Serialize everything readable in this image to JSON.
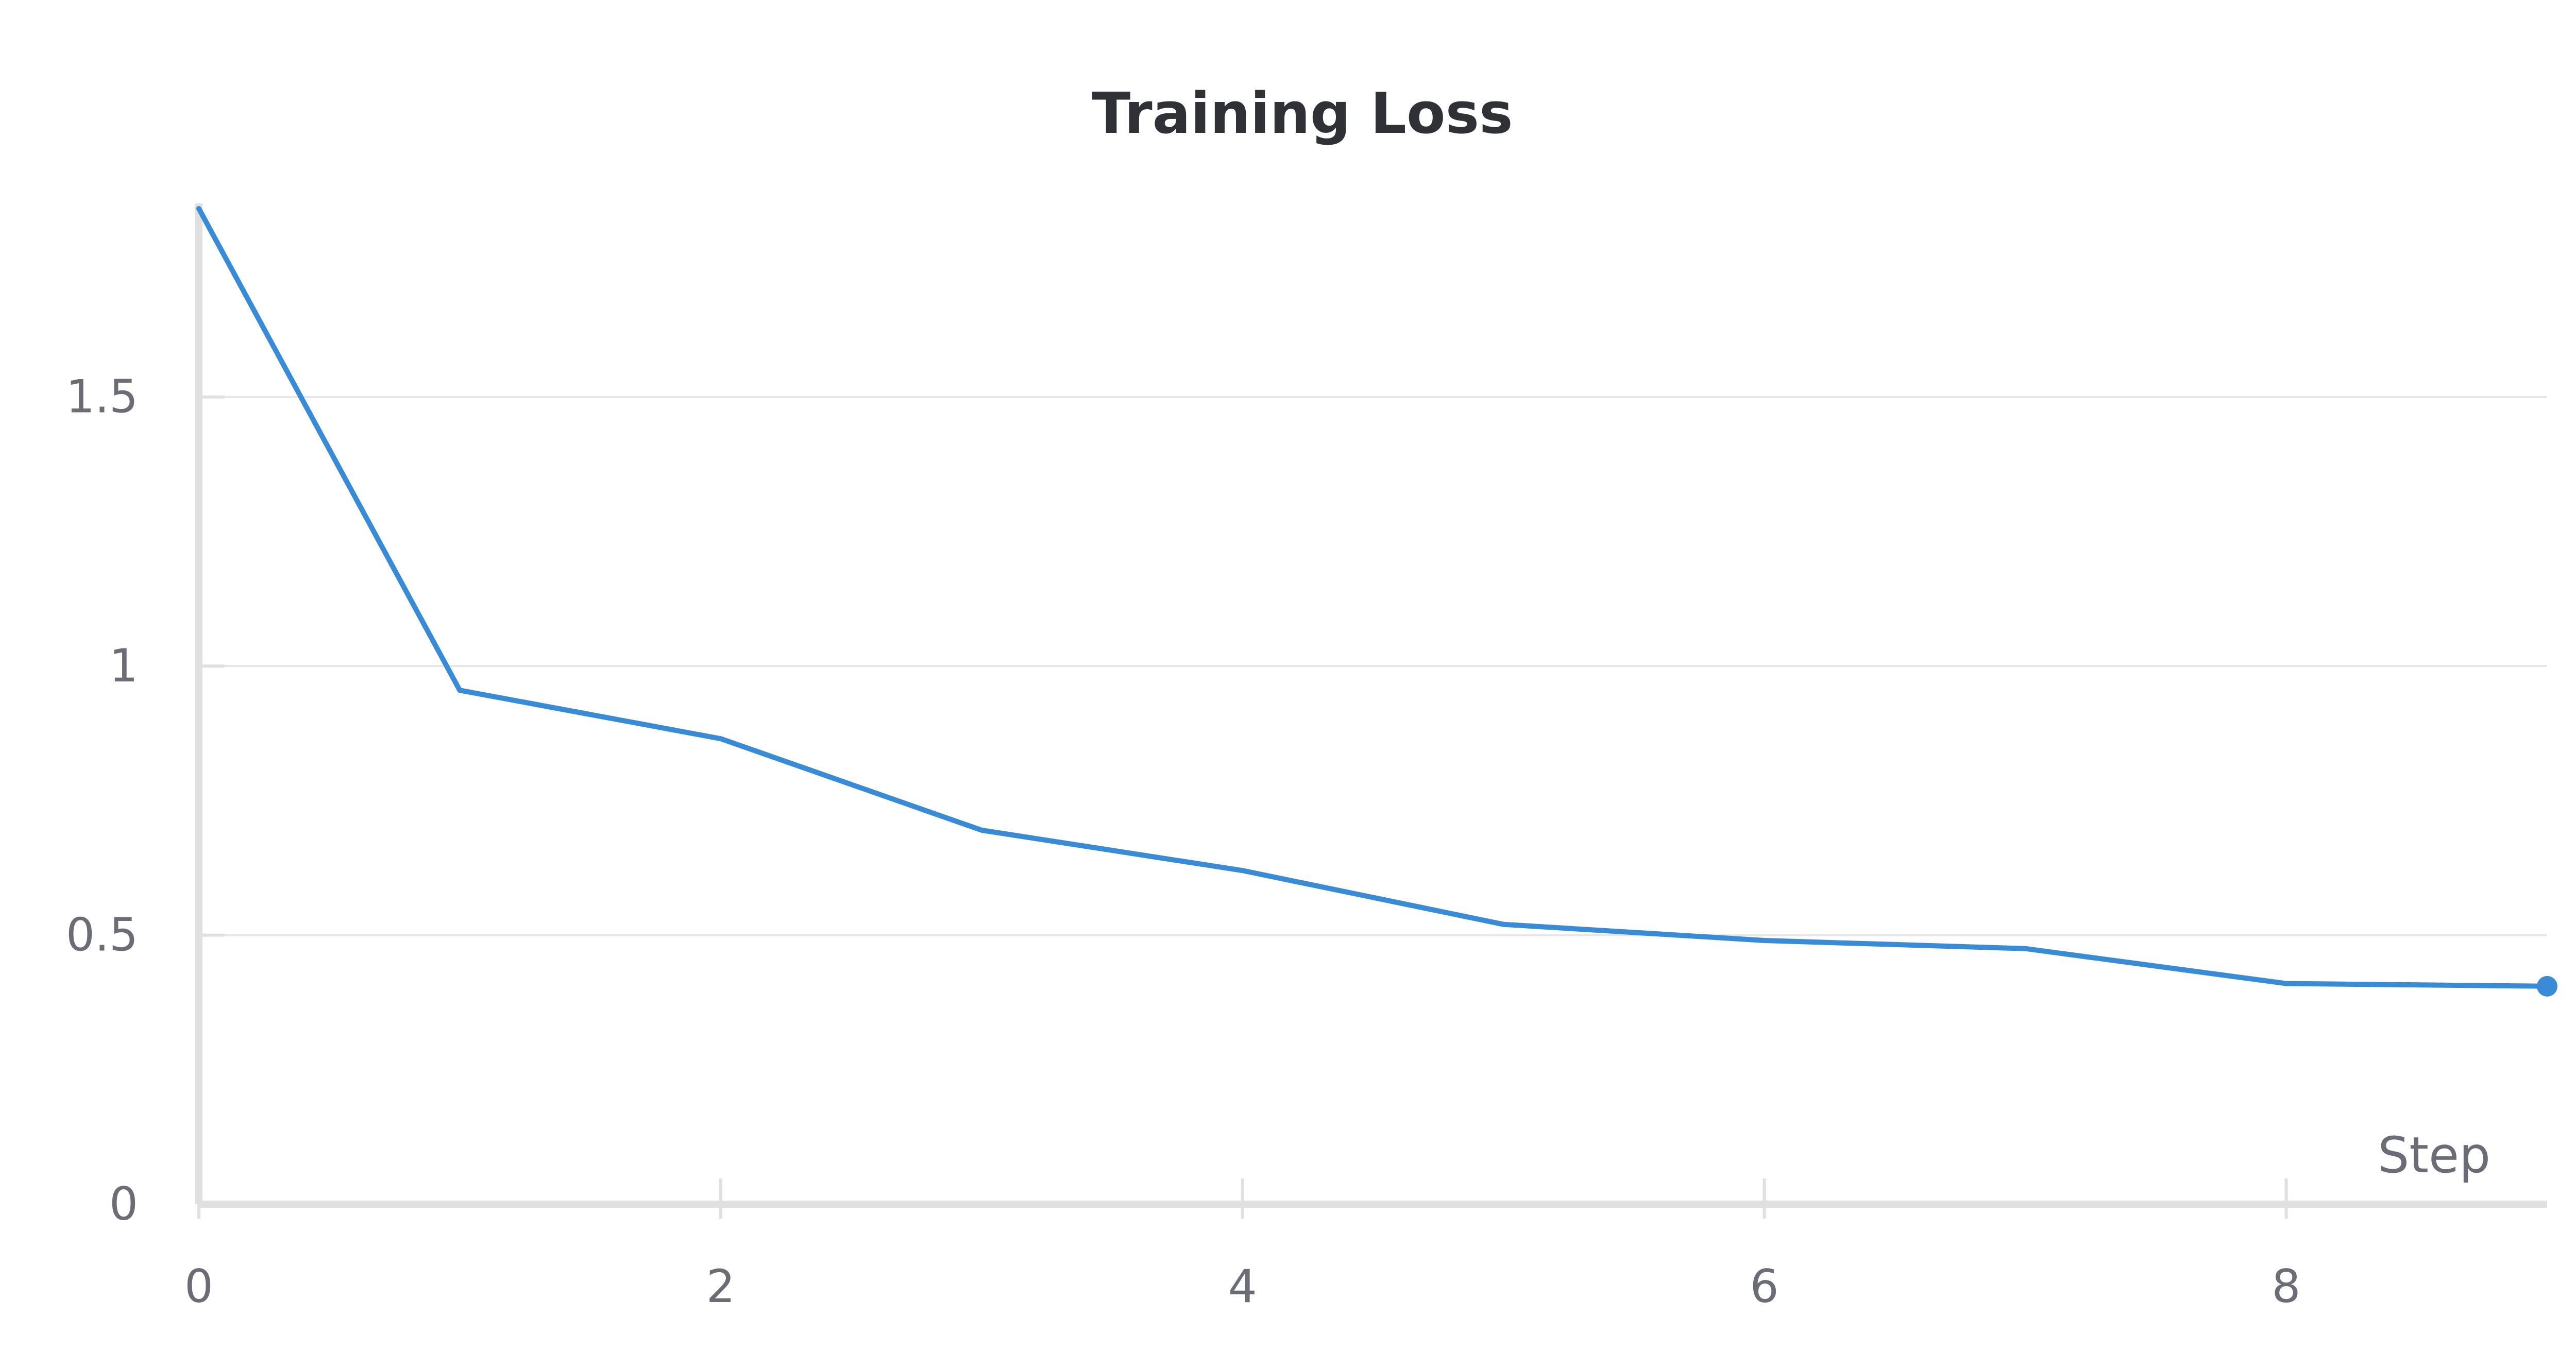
{
  "chart_data": {
    "type": "line",
    "title": "Training Loss",
    "xlabel": "Step",
    "ylabel": "",
    "xlim": [
      0,
      9
    ],
    "ylim": [
      0,
      1.85
    ],
    "x_ticks": [
      0,
      2,
      4,
      6,
      8
    ],
    "y_ticks": [
      0,
      0.5,
      1,
      1.5
    ],
    "x_tick_labels": [
      "0",
      "2",
      "4",
      "6",
      "8"
    ],
    "y_tick_labels": [
      "0",
      "0.5",
      "1",
      "1.5"
    ],
    "grid": true,
    "legend": "none",
    "series": [
      {
        "color": "#3a8bd6",
        "x": [
          0,
          1,
          2,
          3,
          4,
          5,
          6,
          7,
          8,
          9
        ],
        "values": [
          1.85,
          0.955,
          0.865,
          0.695,
          0.62,
          0.52,
          0.49,
          0.475,
          0.41,
          0.405
        ]
      }
    ],
    "colors": {
      "line": "#3a8bd6",
      "grid": "#e6e6e6",
      "axis": "#e0e0e0",
      "text": "#6b6c75",
      "title": "#2f3136"
    }
  }
}
